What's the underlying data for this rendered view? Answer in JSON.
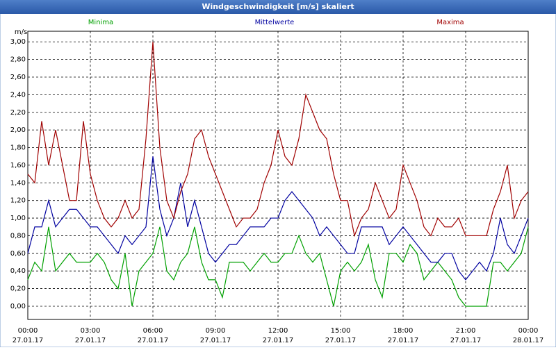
{
  "chart_data": {
    "type": "line",
    "title": "Windgeschwindigkeit [m/s] skaliert",
    "y_unit": "m/s",
    "x": [
      0,
      20,
      40,
      60,
      80,
      100,
      120,
      140,
      160,
      180,
      200,
      220,
      240,
      260,
      280,
      300,
      320,
      340,
      360,
      380,
      400,
      420,
      440,
      460,
      480,
      500,
      520,
      540,
      560,
      580,
      600,
      620,
      640,
      660,
      680,
      700,
      720,
      740,
      760,
      780,
      800,
      820,
      840,
      860,
      880,
      900,
      920,
      940,
      960,
      980,
      1000,
      1020,
      1040,
      1060,
      1080,
      1100,
      1120,
      1140,
      1160,
      1180,
      1200,
      1220,
      1240,
      1260,
      1280,
      1300,
      1320,
      1340,
      1360,
      1380,
      1400,
      1420,
      1440
    ],
    "series": [
      {
        "name": "Minima",
        "color": "#00a000",
        "values": [
          0.3,
          0.5,
          0.4,
          0.9,
          0.4,
          0.5,
          0.6,
          0.5,
          0.5,
          0.5,
          0.6,
          0.5,
          0.3,
          0.2,
          0.6,
          0.0,
          0.4,
          0.5,
          0.6,
          0.9,
          0.4,
          0.3,
          0.5,
          0.6,
          0.9,
          0.5,
          0.3,
          0.3,
          0.1,
          0.5,
          0.5,
          0.5,
          0.4,
          0.5,
          0.6,
          0.5,
          0.5,
          0.6,
          0.6,
          0.8,
          0.6,
          0.5,
          0.6,
          0.3,
          0.0,
          0.4,
          0.5,
          0.4,
          0.5,
          0.7,
          0.3,
          0.1,
          0.6,
          0.6,
          0.5,
          0.7,
          0.6,
          0.3,
          0.4,
          0.5,
          0.4,
          0.3,
          0.1,
          0.0,
          0.0,
          0.0,
          0.0,
          0.5,
          0.5,
          0.4,
          0.5,
          0.6,
          0.9
        ]
      },
      {
        "name": "Mittelwerte",
        "color": "#0000a0",
        "values": [
          0.6,
          0.9,
          0.9,
          1.2,
          0.9,
          1.0,
          1.1,
          1.1,
          1.0,
          0.9,
          0.9,
          0.8,
          0.7,
          0.6,
          0.8,
          0.7,
          0.8,
          0.9,
          1.7,
          1.1,
          0.8,
          1.0,
          1.4,
          0.9,
          1.2,
          0.9,
          0.6,
          0.5,
          0.6,
          0.7,
          0.7,
          0.8,
          0.9,
          0.9,
          0.9,
          1.0,
          1.0,
          1.2,
          1.3,
          1.2,
          1.1,
          1.0,
          0.8,
          0.9,
          0.8,
          0.7,
          0.6,
          0.6,
          0.9,
          0.9,
          0.9,
          0.9,
          0.7,
          0.8,
          0.9,
          0.8,
          0.7,
          0.6,
          0.5,
          0.5,
          0.6,
          0.6,
          0.4,
          0.3,
          0.4,
          0.5,
          0.4,
          0.6,
          1.0,
          0.7,
          0.6,
          0.8,
          1.0
        ]
      },
      {
        "name": "Maxima",
        "color": "#a00000",
        "values": [
          1.5,
          1.4,
          2.1,
          1.6,
          2.0,
          1.6,
          1.2,
          1.2,
          2.1,
          1.5,
          1.2,
          1.0,
          0.9,
          1.0,
          1.2,
          1.0,
          1.1,
          1.9,
          3.0,
          1.8,
          1.2,
          1.0,
          1.3,
          1.5,
          1.9,
          2.0,
          1.7,
          1.5,
          1.3,
          1.1,
          0.9,
          1.0,
          1.0,
          1.1,
          1.4,
          1.6,
          2.0,
          1.7,
          1.6,
          1.9,
          2.4,
          2.2,
          2.0,
          1.9,
          1.5,
          1.2,
          1.2,
          0.8,
          1.0,
          1.1,
          1.4,
          1.2,
          1.0,
          1.1,
          1.6,
          1.4,
          1.2,
          0.9,
          0.8,
          1.0,
          0.9,
          0.9,
          1.0,
          0.8,
          0.8,
          0.8,
          0.8,
          1.1,
          1.3,
          1.6,
          1.0,
          1.2,
          1.3
        ]
      }
    ],
    "xlim": [
      0,
      1440
    ],
    "xticks": [
      {
        "value": 0,
        "label": "00:00"
      },
      {
        "value": 180,
        "label": "03:00"
      },
      {
        "value": 360,
        "label": "06:00"
      },
      {
        "value": 540,
        "label": "09:00"
      },
      {
        "value": 720,
        "label": "12:00"
      },
      {
        "value": 900,
        "label": "15:00"
      },
      {
        "value": 1080,
        "label": "18:00"
      },
      {
        "value": 1260,
        "label": "21:00"
      },
      {
        "value": 1440,
        "label": "00:00"
      }
    ],
    "xtick_dates": [
      "27.01.17",
      "27.01.17",
      "27.01.17",
      "27.01.17",
      "27.01.17",
      "27.01.17",
      "27.01.17",
      "27.01.17",
      "28.01.17"
    ],
    "ylim": [
      -0.15,
      3.12
    ],
    "yticks": [
      {
        "value": 0,
        "label": "0,00"
      },
      {
        "value": 0.2,
        "label": "0,20"
      },
      {
        "value": 0.4,
        "label": "0,40"
      },
      {
        "value": 0.6,
        "label": "0,60"
      },
      {
        "value": 0.8,
        "label": "0,80"
      },
      {
        "value": 1,
        "label": "1,00"
      },
      {
        "value": 1.2,
        "label": "1,20"
      },
      {
        "value": 1.4,
        "label": "1,40"
      },
      {
        "value": 1.6,
        "label": "1,60"
      },
      {
        "value": 1.8,
        "label": "1,80"
      },
      {
        "value": 2,
        "label": "2,00"
      },
      {
        "value": 2.2,
        "label": "2,20"
      },
      {
        "value": 2.4,
        "label": "2,40"
      },
      {
        "value": 2.6,
        "label": "2,60"
      },
      {
        "value": 2.8,
        "label": "2,80"
      },
      {
        "value": 3,
        "label": "3,00"
      }
    ],
    "grid": true
  }
}
